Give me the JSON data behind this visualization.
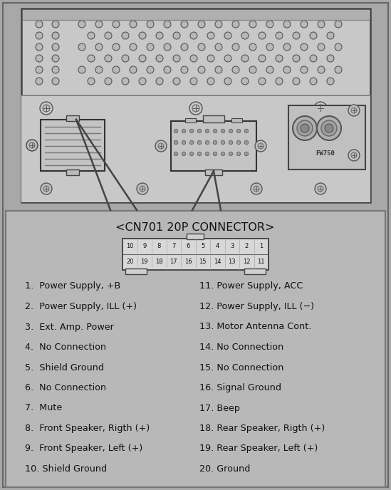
{
  "bg_color": "#a8a8a8",
  "top_bg": "#c0c0c0",
  "bottom_bg": "#b4b4b4",
  "title": "<CN701 20P CONNECTOR>",
  "pin_rows": [
    [
      "10",
      "9",
      "8",
      "7",
      "6",
      "5",
      "4",
      "3",
      "2",
      "1"
    ],
    [
      "20",
      "19",
      "18",
      "17",
      "16",
      "15",
      "14",
      "13",
      "12",
      "11"
    ]
  ],
  "left_items": [
    "1.  Power Supply, +B",
    "2.  Power Supply, ILL (+)",
    "3.  Ext. Amp. Power",
    "4.  No Connection",
    "5.  Shield Ground",
    "6.  No Connection",
    "7.  Mute",
    "8.  Front Speaker, Rigth (+)",
    "9.  Front Speaker, Left (+)",
    "10. Shield Ground"
  ],
  "right_items": [
    "11. Power Supply, ACC",
    "12. Power Supply, ILL (−)",
    "13. Motor Antenna Cont.",
    "14. No Connection",
    "15. No Connection",
    "16. Signal Ground",
    "17. Beep",
    "18. Rear Speaker, Rigth (+)",
    "19. Rear Speaker, Left (+)",
    "20. Ground"
  ],
  "label_fw750": "FW750"
}
